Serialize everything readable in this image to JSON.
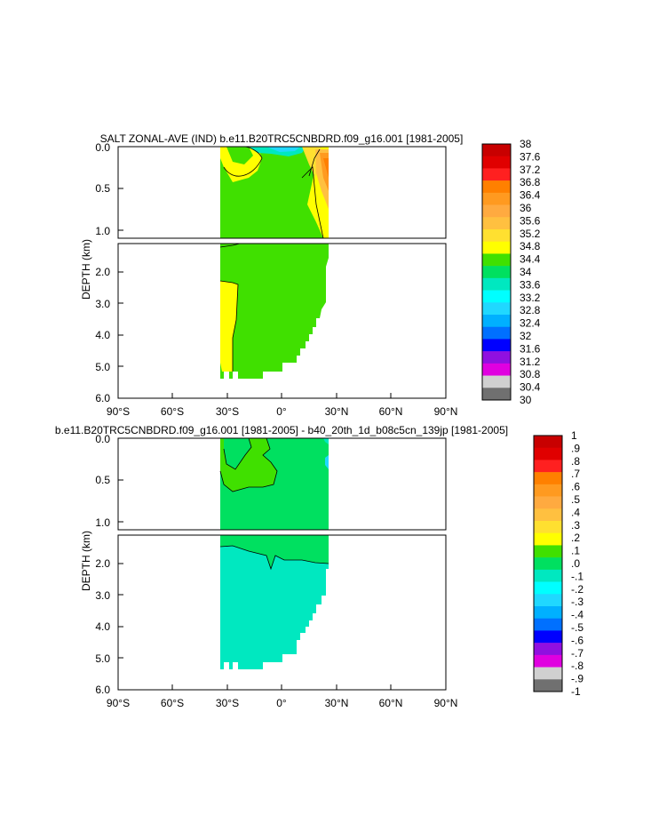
{
  "chart_data": [
    {
      "type": "heatmap",
      "title": "SALT ZONAL-AVE (IND) b.e11.B20TRC5CNBDRD.f09_g16.001 [1981-2005]",
      "ylabel": "DEPTH (km)",
      "x_ticks": [
        "90°S",
        "60°S",
        "30°S",
        "0°",
        "30°N",
        "60°N",
        "90°N"
      ],
      "upper_y_ticks": [
        "0.0",
        "0.5",
        "1.0"
      ],
      "lower_y_ticks": [
        "2.0",
        "3.0",
        "4.0",
        "5.0",
        "6.0"
      ],
      "xlim": [
        -90,
        90
      ],
      "ylim_upper": [
        0,
        1.1
      ],
      "ylim_lower": [
        1.1,
        6.0
      ],
      "colorbar": {
        "labels": [
          "38",
          "37.6",
          "37.2",
          "36.8",
          "36.4",
          "36",
          "35.6",
          "35.2",
          "34.8",
          "34.4",
          "34",
          "33.6",
          "33.2",
          "32.8",
          "32.4",
          "32",
          "31.6",
          "31.2",
          "30.8",
          "30.4",
          "30"
        ],
        "colors": [
          "#c80000",
          "#e00000",
          "#ff2020",
          "#ff8000",
          "#ff9a20",
          "#ffaa40",
          "#ffc040",
          "#ffe030",
          "#ffff00",
          "#40e000",
          "#00e060",
          "#00e8c0",
          "#00ffff",
          "#20d8ff",
          "#00b0ff",
          "#0070ff",
          "#0000ff",
          "#9010e0",
          "#e000e0",
          "#d0d0d0",
          "#707070"
        ]
      }
    },
    {
      "type": "heatmap",
      "title": "b.e11.B20TRC5CNBDRD.f09_g16.001 [1981-2005] - b40_20th_1d_b08c5cn_139jp [1981-2005]",
      "ylabel": "DEPTH (km)",
      "x_ticks": [
        "90°S",
        "60°S",
        "30°S",
        "0°",
        "30°N",
        "60°N",
        "90°N"
      ],
      "upper_y_ticks": [
        "0.0",
        "0.5",
        "1.0"
      ],
      "lower_y_ticks": [
        "2.0",
        "3.0",
        "4.0",
        "5.0",
        "6.0"
      ],
      "xlim": [
        -90,
        90
      ],
      "ylim_upper": [
        0,
        1.1
      ],
      "ylim_lower": [
        1.1,
        6.0
      ],
      "colorbar": {
        "labels": [
          "1",
          ".9",
          ".8",
          ".7",
          ".6",
          ".5",
          ".4",
          ".3",
          ".2",
          ".1",
          ".0",
          "-.1",
          "-.2",
          "-.3",
          "-.4",
          "-.5",
          "-.6",
          "-.7",
          "-.8",
          "-.9",
          "-1"
        ],
        "colors": [
          "#c80000",
          "#e00000",
          "#ff2020",
          "#ff8000",
          "#ff9a20",
          "#ffaa40",
          "#ffc040",
          "#ffe030",
          "#ffff00",
          "#40e000",
          "#00e060",
          "#00e8c0",
          "#00ffff",
          "#20d8ff",
          "#00b0ff",
          "#0070ff",
          "#0000ff",
          "#9010e0",
          "#e000e0",
          "#d0d0d0",
          "#707070"
        ]
      }
    }
  ]
}
